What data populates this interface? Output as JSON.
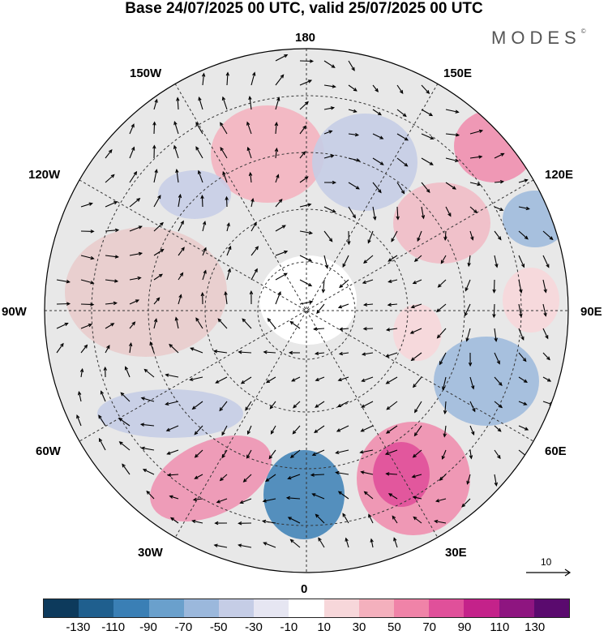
{
  "title": "Base 24/07/2025 00 UTC, valid 25/07/2025 00 UTC",
  "brand": "MODES",
  "brand_mark": "©",
  "longitude_labels": {
    "top": "180",
    "bottom": "0",
    "left": "90W",
    "right": "90E",
    "upper_left": "150W",
    "upper_right": "150E",
    "mid_upper_left": "120W",
    "mid_upper_right": "120E",
    "mid_lower_left": "60W",
    "mid_lower_right": "60E",
    "lower_left": "30W",
    "lower_right": "30E"
  },
  "reference_vector": "10",
  "colorbar": {
    "colors": [
      "#0d3a5c",
      "#1f5f8e",
      "#3a7fb5",
      "#6aa0cc",
      "#9bb8dc",
      "#c5cde6",
      "#e6e6f2",
      "#ffffff",
      "#f7d7da",
      "#f4b0bd",
      "#f083a8",
      "#e0509a",
      "#c4228a",
      "#8e1580",
      "#5a0a6e"
    ],
    "ticks": [
      "-130",
      "-110",
      "-90",
      "-70",
      "-50",
      "-30",
      "-10",
      "10",
      "30",
      "50",
      "70",
      "90",
      "110",
      "130"
    ]
  }
}
